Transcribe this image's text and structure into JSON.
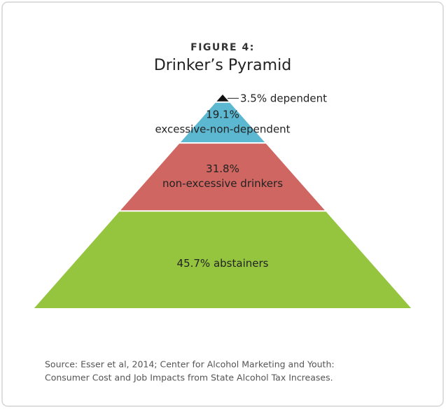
{
  "chart_data": {
    "type": "pyramid",
    "title": "FIGURE 4:",
    "subtitle": "Drinker’s Pyramid",
    "categories": [
      "dependent",
      "excessive-non-dependent",
      "non-excessive drinkers",
      "abstainers"
    ],
    "values": [
      3.5,
      19.1,
      31.8,
      45.7
    ],
    "value_labels": [
      "3.5%",
      "19.1%",
      "31.8%",
      "45.7%"
    ],
    "colors": [
      "#111111",
      "#5bb8d0",
      "#cf6661",
      "#95c53f"
    ],
    "source": [
      "Source: Esser et al, 2014; Center for Alcohol Marketing and Youth:",
      "Consumer Cost and Job Impacts from State Alcohol Tax Increases."
    ]
  }
}
